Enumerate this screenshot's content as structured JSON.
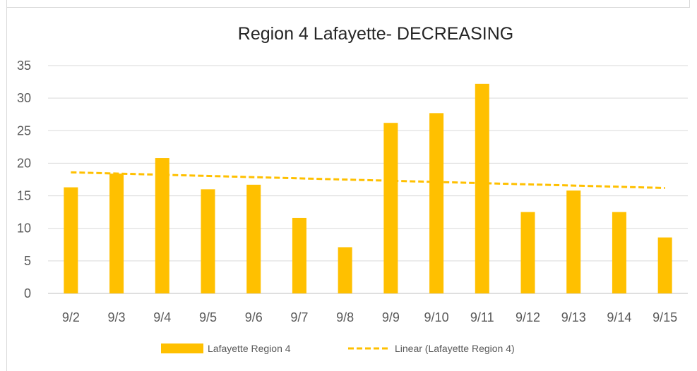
{
  "chart_data": {
    "type": "bar",
    "title": "Region 4 Lafayette- DECREASING",
    "xlabel": "",
    "ylabel": "",
    "categories": [
      "9/2",
      "9/3",
      "9/4",
      "9/5",
      "9/6",
      "9/7",
      "9/8",
      "9/9",
      "9/10",
      "9/11",
      "9/12",
      "9/13",
      "9/14",
      "9/15"
    ],
    "series": [
      {
        "name": "Lafayette Region 4",
        "values": [
          16.3,
          18.4,
          20.8,
          16.0,
          16.7,
          11.6,
          7.1,
          26.2,
          27.7,
          32.2,
          12.5,
          15.8,
          12.5,
          8.6
        ],
        "color": "#ffc000"
      }
    ],
    "trendline": {
      "name": "Linear (Lafayette Region 4)",
      "type": "linear",
      "start": 18.6,
      "end": 16.2,
      "color": "#ffc000",
      "style": "dashed"
    },
    "ylim": [
      0,
      35
    ],
    "yticks": [
      0,
      5,
      10,
      15,
      20,
      25,
      30,
      35
    ],
    "grid": true,
    "legend": "bottom"
  }
}
